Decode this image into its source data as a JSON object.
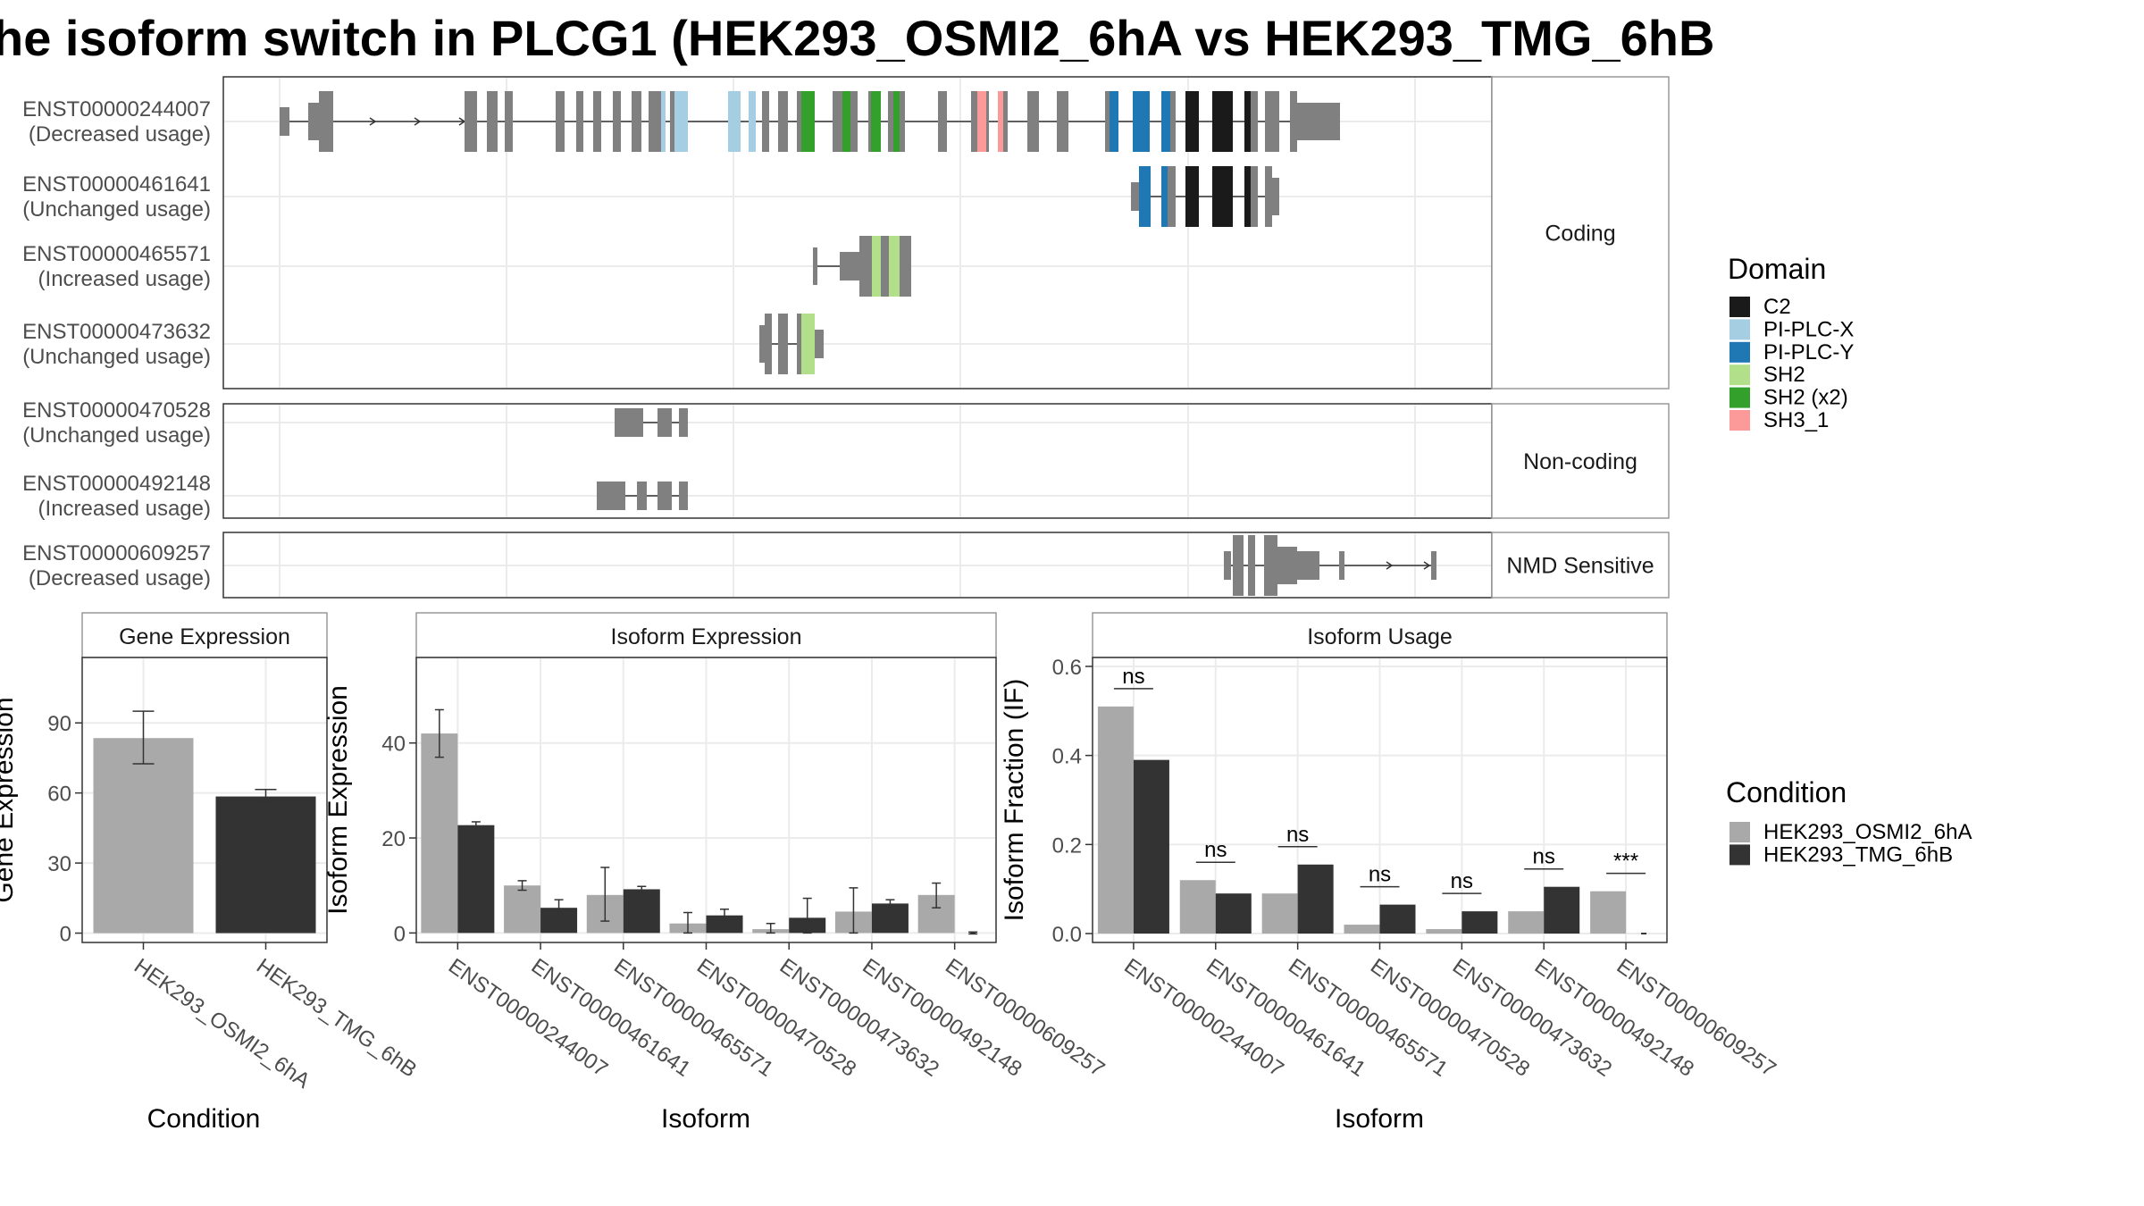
{
  "title": "he isoform switch in PLCG1 (HEK293_OSMI2_6hA vs HEK293_TMG_6hB",
  "colors": {
    "condition_a": "#a9a9a9",
    "condition_b": "#333333",
    "exon": "#808080",
    "C2": "#1a1a1a",
    "PI-PLC-X": "#a6cee3",
    "PI-PLC-Y": "#1f78b4",
    "SH2": "#b2df8a",
    "SH2 (x2)": "#33a02c",
    "SH3_1": "#fb9a99"
  },
  "chart_data": [
    {
      "type": "gene-structure",
      "legend_title": "Domain",
      "legend_entries": [
        "C2",
        "PI-PLC-X",
        "PI-PLC-Y",
        "SH2",
        "SH2 (x2)",
        "SH3_1"
      ],
      "facets": [
        {
          "label": "Coding",
          "transcripts": [
            {
              "id": "ENST00000244007",
              "usage": "(Decreased usage)"
            },
            {
              "id": "ENST00000461641",
              "usage": "(Unchanged usage)"
            },
            {
              "id": "ENST00000465571",
              "usage": "(Increased usage)"
            },
            {
              "id": "ENST00000473632",
              "usage": "(Unchanged usage)"
            }
          ]
        },
        {
          "label": "Non-coding",
          "transcripts": [
            {
              "id": "ENST00000470528",
              "usage": "(Unchanged usage)"
            },
            {
              "id": "ENST00000492148",
              "usage": "(Increased usage)"
            }
          ]
        },
        {
          "label": "NMD Sensitive",
          "transcripts": [
            {
              "id": "ENST00000609257",
              "usage": "(Decreased usage)"
            }
          ]
        }
      ]
    },
    {
      "type": "bar",
      "strip": "Gene Expression",
      "xlabel": "Condition",
      "ylabel": "Gene Expression",
      "ylim": [
        -4,
        118
      ],
      "yticks": [
        0,
        30,
        60,
        90
      ],
      "categories": [
        "HEK293_OSMI2_6hA",
        "HEK293_TMG_6hB"
      ],
      "values": [
        83.5,
        58.5
      ],
      "errors": [
        [
          72.5,
          95
        ],
        [
          56,
          61.5
        ]
      ]
    },
    {
      "type": "bar",
      "strip": "Isoform Expression",
      "xlabel": "Isoform",
      "ylabel": "Isoform Expression",
      "ylim": [
        -2,
        58
      ],
      "yticks": [
        0,
        20,
        40
      ],
      "categories": [
        "ENST00000244007",
        "ENST00000461641",
        "ENST00000465571",
        "ENST00000470528",
        "ENST00000473632",
        "ENST00000492148",
        "ENST00000609257"
      ],
      "series": [
        {
          "name": "HEK293_OSMI2_6hA",
          "values": [
            42,
            10,
            8,
            2,
            0.8,
            4.5,
            8
          ],
          "errors": [
            [
              37,
              47
            ],
            [
              9,
              11
            ],
            [
              2.5,
              13.8
            ],
            [
              0,
              4.3
            ],
            [
              0,
              2
            ],
            [
              0,
              9.5
            ],
            [
              5.3,
              10.5
            ]
          ]
        },
        {
          "name": "HEK293_TMG_6hB",
          "values": [
            22.7,
            5.3,
            9.2,
            3.7,
            3.2,
            6.2,
            0
          ],
          "errors": [
            [
              22,
              23.4
            ],
            [
              3.5,
              7
            ],
            [
              8.5,
              9.8
            ],
            [
              2.5,
              5
            ],
            [
              0,
              7.3
            ],
            [
              5.3,
              7
            ],
            [
              -0.2,
              0.2
            ]
          ]
        }
      ]
    },
    {
      "type": "bar",
      "strip": "Isoform Usage",
      "xlabel": "Isoform",
      "ylabel": "Isoform Fraction (IF)",
      "ylim": [
        -0.02,
        0.62
      ],
      "yticks": [
        "0.0",
        "0.2",
        "0.4",
        "0.6"
      ],
      "categories": [
        "ENST00000244007",
        "ENST00000461641",
        "ENST00000465571",
        "ENST00000470528",
        "ENST00000473632",
        "ENST00000492148",
        "ENST00000609257"
      ],
      "series": [
        {
          "name": "HEK293_OSMI2_6hA",
          "values": [
            0.51,
            0.12,
            0.09,
            0.02,
            0.01,
            0.05,
            0.095
          ]
        },
        {
          "name": "HEK293_TMG_6hB",
          "values": [
            0.39,
            0.09,
            0.155,
            0.065,
            0.05,
            0.105,
            0.0
          ]
        }
      ],
      "significance": [
        "ns",
        "ns",
        "ns",
        "ns",
        "ns",
        "ns",
        "***"
      ]
    }
  ],
  "condition_legend": {
    "title": "Condition",
    "entries": [
      "HEK293_OSMI2_6hA",
      "HEK293_TMG_6hB"
    ]
  }
}
